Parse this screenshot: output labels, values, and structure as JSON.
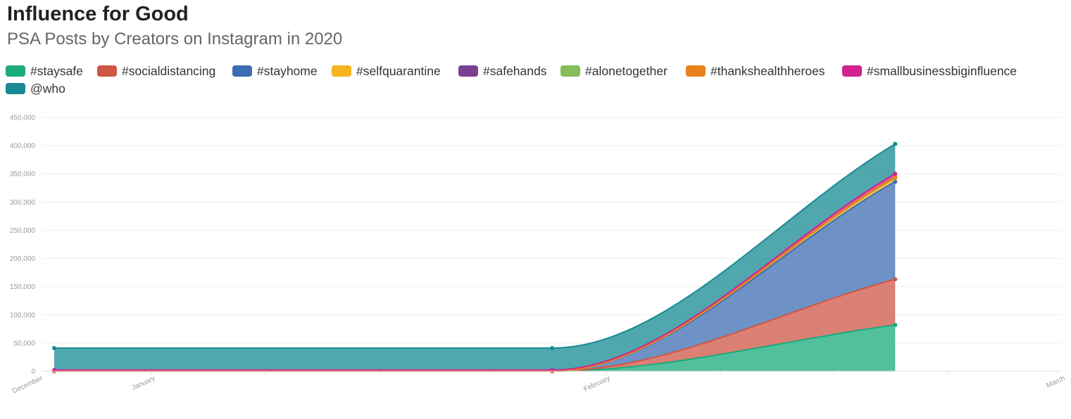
{
  "header": {
    "title": "Influence for Good",
    "subtitle": "PSA Posts by Creators on Instagram in 2020"
  },
  "chart_data": {
    "type": "area",
    "stacked": true,
    "title": "Influence for Good",
    "subtitle": "PSA Posts by Creators on Instagram in 2020",
    "xlabel": "",
    "ylabel": "",
    "x_ticks": [
      "December",
      "January",
      "February",
      "March"
    ],
    "x": [
      "2019-12-01",
      "2020-01-15",
      "2020-02-15"
    ],
    "ylim": [
      0,
      450000
    ],
    "y_ticks": [
      0,
      50000,
      100000,
      150000,
      200000,
      250000,
      300000,
      350000,
      400000,
      450000
    ],
    "y_tick_labels": [
      "0",
      "50,000",
      "100,000",
      "150,000",
      "200,000",
      "250,000",
      "300,000",
      "350,000",
      "400,000",
      "450,000"
    ],
    "grid": true,
    "legend_position": "top",
    "series": [
      {
        "name": "#staysafe",
        "color": "#1aab7c",
        "values": [
          0,
          0,
          82000
        ]
      },
      {
        "name": "#socialdistancing",
        "color": "#cf5645",
        "values": [
          0,
          0,
          81000
        ]
      },
      {
        "name": "#stayhome",
        "color": "#3d6db2",
        "values": [
          0,
          0,
          173000
        ]
      },
      {
        "name": "#selfquarantine",
        "color": "#f4b51f",
        "values": [
          0,
          0,
          6000
        ]
      },
      {
        "name": "#safehands",
        "color": "#7b3f94",
        "values": [
          0,
          0,
          1500
        ]
      },
      {
        "name": "#alonetogether",
        "color": "#86bd5a",
        "values": [
          0,
          0,
          500
        ]
      },
      {
        "name": "#thankshealthheroes",
        "color": "#e8821c",
        "values": [
          0,
          0,
          500
        ]
      },
      {
        "name": "#smallbusinessbiginfluence",
        "color": "#d1228f",
        "values": [
          2000,
          2000,
          5500
        ]
      },
      {
        "name": "@who",
        "color": "#178a93",
        "values": [
          39000,
          39000,
          53000
        ]
      }
    ]
  }
}
